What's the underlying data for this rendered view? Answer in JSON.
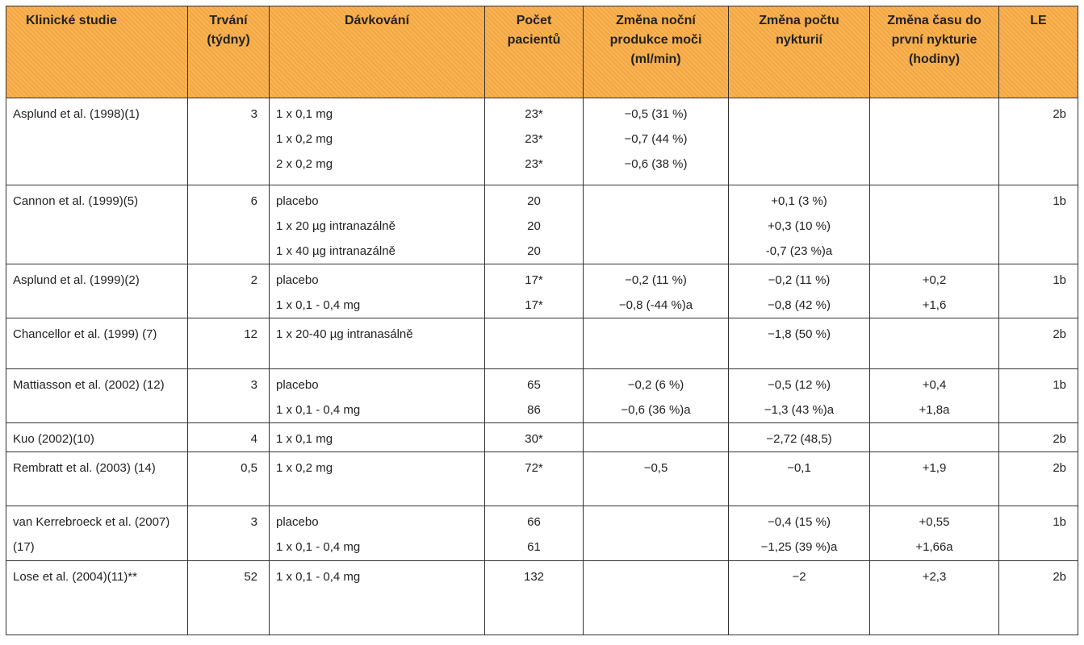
{
  "table": {
    "headers": [
      "Klinické studie",
      "Trvání (týdny)",
      "Dávkování",
      "Počet pacientů",
      "Změna noční produkce moči (ml/min)",
      "Změna počtu nykturií",
      "Změna času do první nykturie (hodiny)",
      "LE"
    ],
    "rows": [
      [
        [
          "Asplund et al. (1998)(1)"
        ],
        [
          "3"
        ],
        [
          "1 x 0,1 mg",
          "1 x 0,2 mg",
          "2 x 0,2 mg"
        ],
        [
          "23*",
          "23*",
          "23*"
        ],
        [
          "−0,5 (31 %)",
          "−0,7 (44 %)",
          "−0,6 (38 %)"
        ],
        [],
        [],
        [
          "2b"
        ]
      ],
      [
        [
          "Cannon et al. (1999)(5)"
        ],
        [
          "6"
        ],
        [
          "placebo",
          "1 x 20 µg intranazálně",
          "1 x 40 µg intranazálně"
        ],
        [
          "20",
          "20",
          "20"
        ],
        [],
        [
          "+0,1 (3 %)",
          "+0,3 (10 %)",
          "-0,7 (23 %)a"
        ],
        [],
        [
          "1b"
        ]
      ],
      [
        [
          "Asplund et al. (1999)(2)"
        ],
        [
          "2"
        ],
        [
          "placebo",
          "1 x 0,1 - 0,4 mg"
        ],
        [
          "17*",
          "17*"
        ],
        [
          "−0,2 (11 %)",
          "−0,8 (-44 %)a"
        ],
        [
          "−0,2 (11 %)",
          "−0,8 (42 %)"
        ],
        [
          "+0,2",
          "+1,6"
        ],
        [
          "1b"
        ]
      ],
      [
        [
          "Chancellor et al. (1999) (7)"
        ],
        [
          "12"
        ],
        [
          "1 x 20-40 µg intranasálně"
        ],
        [],
        [],
        [
          "−1,8 (50 %)"
        ],
        [],
        [
          "2b"
        ]
      ],
      [
        [
          "Mattiasson et al. (2002) (12)"
        ],
        [
          "3"
        ],
        [
          "placebo",
          "1 x 0,1 - 0,4 mg"
        ],
        [
          "65",
          "86"
        ],
        [
          "−0,2 (6 %)",
          "−0,6 (36 %)a"
        ],
        [
          "−0,5 (12 %)",
          "−1,3 (43 %)a"
        ],
        [
          "+0,4",
          "+1,8a"
        ],
        [
          "1b"
        ]
      ],
      [
        [
          "Kuo (2002)(10)"
        ],
        [
          "4"
        ],
        [
          "1 x 0,1 mg"
        ],
        [
          "30*"
        ],
        [],
        [
          "−2,72 (48,5)"
        ],
        [],
        [
          "2b"
        ]
      ],
      [
        [
          "Rembratt et al. (2003) (14)"
        ],
        [
          "0,5"
        ],
        [
          "1 x 0,2 mg"
        ],
        [
          "72*"
        ],
        [
          "−0,5"
        ],
        [
          "−0,1"
        ],
        [
          "+1,9"
        ],
        [
          "2b"
        ]
      ],
      [
        [
          "van Kerrebroeck et al. (2007)(17)"
        ],
        [
          "3"
        ],
        [
          "placebo",
          "1 x 0,1 - 0,4 mg"
        ],
        [
          "66",
          "61"
        ],
        [],
        [
          "−0,4 (15 %)",
          "−1,25 (39 %)a"
        ],
        [
          "+0,55",
          "+1,66a"
        ],
        [
          "1b"
        ]
      ],
      [
        [
          "Lose et al. (2004)(11)**"
        ],
        [
          "52"
        ],
        [
          "1 x 0,1 - 0,4 mg"
        ],
        [
          "132"
        ],
        [],
        [
          "−2"
        ],
        [
          "+2,3"
        ],
        [
          "2b"
        ]
      ]
    ]
  }
}
